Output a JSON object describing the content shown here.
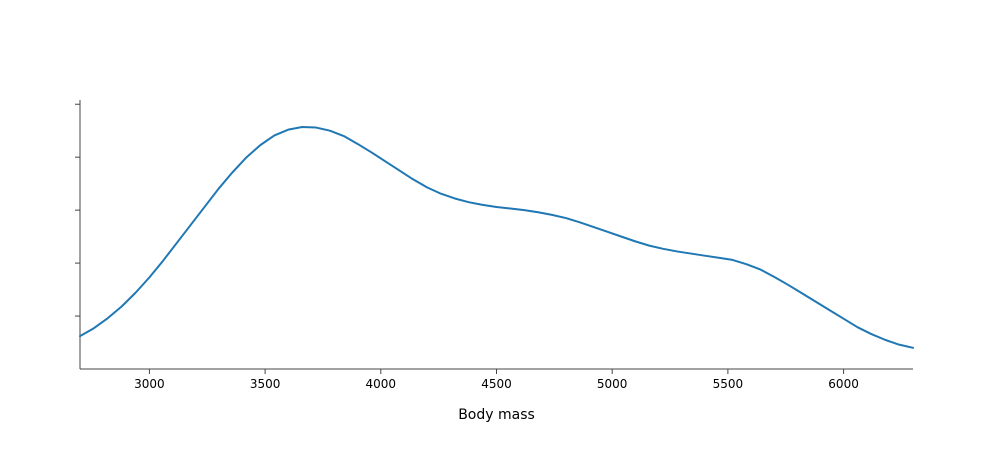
{
  "chart_data": {
    "type": "line",
    "title": "",
    "xlabel": "Body mass",
    "ylabel": "",
    "xlim": [
      2700,
      6300
    ],
    "ylim": [
      0,
      0.000508
    ],
    "x_ticks": [
      3000,
      3500,
      4000,
      4500,
      5000,
      5500,
      6000
    ],
    "y_ticks": [
      0.0001,
      0.0002,
      0.0003,
      0.0004,
      0.0005
    ],
    "y_tick_labels_visible": false,
    "grid": false,
    "legend": "none",
    "line_color": "#1f77b4",
    "series": [
      {
        "x": [
          2700,
          2760,
          2820,
          2880,
          2940,
          3000,
          3060,
          3120,
          3180,
          3240,
          3300,
          3360,
          3420,
          3480,
          3540,
          3600,
          3660,
          3720,
          3780,
          3840,
          3900,
          3960,
          4020,
          4080,
          4140,
          4200,
          4260,
          4320,
          4380,
          4440,
          4500,
          4560,
          4620,
          4680,
          4740,
          4800,
          4860,
          4920,
          4980,
          5040,
          5100,
          5160,
          5220,
          5280,
          5340,
          5400,
          5460,
          5520,
          5580,
          5640,
          5700,
          5760,
          5820,
          5880,
          5940,
          6000,
          6060,
          6120,
          6180,
          6240,
          6300
        ],
        "y": [
          6.2e-05,
          7.7e-05,
          9.6e-05,
          0.000118,
          0.000144,
          0.000173,
          0.000205,
          0.000239,
          0.000273,
          0.000307,
          0.000341,
          0.000372,
          0.0004,
          0.000423,
          0.000441,
          0.000452,
          0.000457,
          0.000456,
          0.00045,
          0.00044,
          0.000425,
          0.000409,
          0.000392,
          0.000375,
          0.000358,
          0.000343,
          0.000331,
          0.000322,
          0.000315,
          0.00031,
          0.000306,
          0.000303,
          0.0003,
          0.000296,
          0.000291,
          0.000285,
          0.000277,
          0.000268,
          0.000259,
          0.00025,
          0.000241,
          0.000233,
          0.000227,
          0.000222,
          0.000218,
          0.000214,
          0.00021,
          0.000206,
          0.000198,
          0.000188,
          0.000174,
          0.000159,
          0.000143,
          0.000127,
          0.000111,
          9.5e-05,
          7.9e-05,
          6.6e-05,
          5.5e-05,
          4.6e-05,
          4e-05
        ]
      }
    ]
  }
}
